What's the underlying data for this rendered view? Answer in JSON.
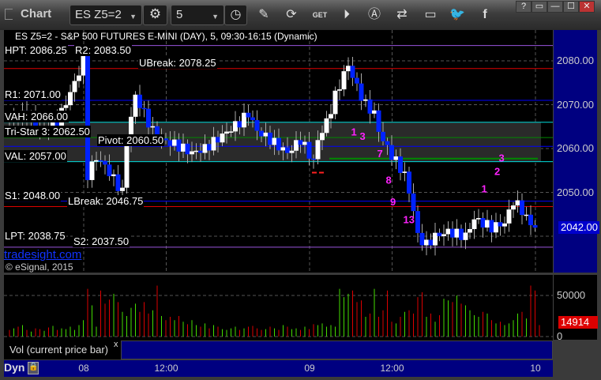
{
  "window": {
    "title": "Chart",
    "symbol": "ES Z5=2",
    "interval": "5",
    "controls": [
      "?",
      "▭",
      "—",
      "☐",
      "✕"
    ]
  },
  "toolbar_icons": [
    "settings-icon",
    "clock-icon",
    "pencil-icon",
    "refresh-icon",
    "get-icon",
    "play-icon",
    "alert-icon",
    "link-icon",
    "comment-icon",
    "twitter-icon",
    "facebook-icon"
  ],
  "chart": {
    "description_line": "ES Z5=2 - S&P 500 FUTURES E-MINI (DAY), 5, 09:30-16:15 (Dynamic)",
    "watermark": "tradesight.com",
    "copyright": "© eSignal, 2015",
    "levels": [
      {
        "label": "HPT: 2086.25",
        "price": 2086.25,
        "color": "#000000"
      },
      {
        "label": "R2: 2083.50",
        "price": 2083.5,
        "color": "#9955dd"
      },
      {
        "label": "UBreak: 2078.25",
        "price": 2078.25,
        "color": "#dd0000"
      },
      {
        "label": "R1: 2071.00",
        "price": 2071.0,
        "color": "#0000ff"
      },
      {
        "label": "VAH: 2066.00",
        "price": 2066.0,
        "color": "#00dddd"
      },
      {
        "label": "Tri-Star 3: 2062.50",
        "price": 2062.5,
        "color": "#008800"
      },
      {
        "label": "Pivot: 2060.50",
        "price": 2060.5,
        "color": "#0000ff"
      },
      {
        "label": "VAL: 2057.00",
        "price": 2057.0,
        "color": "#00dddd"
      },
      {
        "label": "S1: 2048.00",
        "price": 2048.0,
        "color": "#0000ff"
      },
      {
        "label": "LBreak: 2046.75",
        "price": 2046.75,
        "color": "#dd0000"
      },
      {
        "label": "LPT: 2038.75",
        "price": 2038.75,
        "color": "#000000"
      },
      {
        "label": "S2: 2037.50",
        "price": 2037.5,
        "color": "#9955dd"
      }
    ],
    "price_ticks": [
      "2080.00",
      "2070.00",
      "2060.00",
      "2050.00"
    ],
    "last_price": "2042.00",
    "price_path": [
      [
        0,
        2066
      ],
      [
        4,
        2068
      ],
      [
        7,
        2064
      ],
      [
        11,
        2066
      ],
      [
        15,
        2075
      ],
      [
        17,
        2080
      ],
      [
        18,
        2054
      ],
      [
        20,
        2058
      ],
      [
        22,
        2056
      ],
      [
        24,
        2053
      ],
      [
        26,
        2050
      ],
      [
        27,
        2062
      ],
      [
        29,
        2072
      ],
      [
        31,
        2068
      ],
      [
        33,
        2064
      ],
      [
        35,
        2062
      ],
      [
        38,
        2061
      ],
      [
        42,
        2059
      ],
      [
        45,
        2060
      ],
      [
        49,
        2063
      ],
      [
        53,
        2066
      ],
      [
        55,
        2068
      ],
      [
        57,
        2064
      ],
      [
        60,
        2062
      ],
      [
        64,
        2059
      ],
      [
        67,
        2062
      ],
      [
        70,
        2057
      ],
      [
        71,
        2062
      ],
      [
        73,
        2066
      ],
      [
        75,
        2072
      ],
      [
        77,
        2077
      ],
      [
        78,
        2079
      ],
      [
        80,
        2074
      ],
      [
        82,
        2070
      ],
      [
        84,
        2068
      ],
      [
        85,
        2064
      ],
      [
        87,
        2060
      ],
      [
        89,
        2057
      ],
      [
        91,
        2054
      ],
      [
        92,
        2050
      ],
      [
        93,
        2046
      ],
      [
        94,
        2040
      ],
      [
        96,
        2038
      ],
      [
        98,
        2040
      ],
      [
        101,
        2041
      ],
      [
        105,
        2040
      ],
      [
        107,
        2044
      ],
      [
        111,
        2042
      ],
      [
        114,
        2043
      ],
      [
        116,
        2048
      ],
      [
        118,
        2046
      ],
      [
        119,
        2044
      ],
      [
        121,
        2042
      ]
    ],
    "annotations": [
      {
        "text": "1",
        "bar": 79,
        "price": 2063
      },
      {
        "text": "3",
        "bar": 81,
        "price": 2062
      },
      {
        "text": "7",
        "bar": 85,
        "price": 2058
      },
      {
        "text": "8",
        "bar": 87,
        "price": 2052
      },
      {
        "text": "9",
        "bar": 88,
        "price": 2047
      },
      {
        "text": "13",
        "bar": 91,
        "price": 2043
      },
      {
        "text": "1",
        "bar": 109,
        "price": 2050
      },
      {
        "text": "2",
        "bar": 112,
        "price": 2054
      },
      {
        "text": "3",
        "bar": 113,
        "price": 2057
      }
    ],
    "annotation_color": "#ff22ff"
  },
  "volume": {
    "label": "Vol (current price bar)",
    "close": "x",
    "ticks": [
      "50000",
      "0"
    ],
    "last": "14914",
    "values": [
      8,
      10,
      12,
      14,
      8,
      6,
      10,
      9,
      7,
      11,
      13,
      8,
      10,
      9,
      12,
      8,
      14,
      20,
      58,
      38,
      12,
      56,
      40,
      45,
      52,
      42,
      30,
      25,
      35,
      40,
      30,
      42,
      28,
      32,
      62,
      25,
      20,
      24,
      20,
      25,
      18,
      15,
      20,
      14,
      12,
      16,
      10,
      14,
      12,
      9,
      8,
      10,
      12,
      8,
      10,
      12,
      13,
      10,
      8,
      9,
      12,
      10,
      8,
      14,
      12,
      9,
      10,
      8,
      12,
      9,
      15,
      14,
      16,
      12,
      14,
      12,
      58,
      48,
      52,
      56,
      42,
      44,
      24,
      28,
      58,
      24,
      32,
      56,
      18,
      16,
      24,
      30,
      32,
      28,
      48,
      54,
      24,
      28,
      18,
      26,
      46,
      44,
      42,
      50,
      40,
      38,
      32,
      26,
      24,
      30,
      28,
      20,
      16,
      18,
      14,
      16,
      20,
      28,
      30,
      22,
      62,
      56,
      14
    ],
    "up_color": "#44dd00",
    "down_color": "#dd0000"
  },
  "time_axis": {
    "labels": [
      {
        "text": "08",
        "bar": 18
      },
      {
        "text": "12:00",
        "bar": 37
      },
      {
        "text": "09",
        "bar": 70
      },
      {
        "text": "12:00",
        "bar": 89
      },
      {
        "text": "10",
        "bar": 122
      }
    ],
    "mode": "Dyn"
  }
}
